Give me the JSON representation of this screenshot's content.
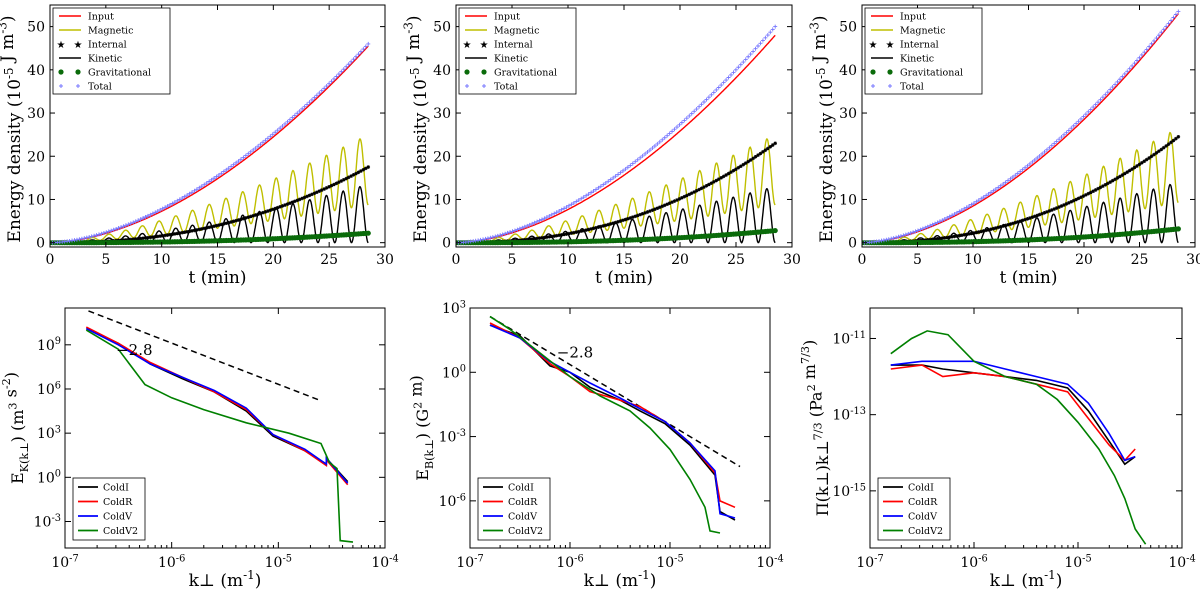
{
  "chart_data": [
    {
      "type": "line",
      "panel": "top-left",
      "xlabel": "t (min)",
      "ylabel": "Energy density (10^-5 J m^-3)",
      "xlim": [
        0,
        30
      ],
      "ylim": [
        -1,
        55
      ],
      "xticks": [
        0,
        5,
        10,
        15,
        20,
        25,
        30
      ],
      "yticks": [
        0,
        10,
        20,
        30,
        40,
        50
      ],
      "legend_position": "top-left",
      "t_end": 28.5,
      "series": [
        {
          "name": "Input",
          "color": "#ff0000",
          "style": "line",
          "model": "quad",
          "end": 45.5,
          "power": 1.75
        },
        {
          "name": "Magnetic",
          "color": "#bfbf00",
          "style": "line",
          "model": "osc_pos",
          "end": 25,
          "period": 1.5
        },
        {
          "name": "Internal",
          "color": "#000000",
          "style": "star",
          "model": "quad",
          "end": 17.5,
          "power": 2.3
        },
        {
          "name": "Kinetic",
          "color": "#000000",
          "style": "line",
          "model": "osc_neg",
          "end": 13.5,
          "period": 1.5
        },
        {
          "name": "Gravitational",
          "color": "#0a6b0a",
          "style": "dot",
          "model": "quad",
          "end": 2.2,
          "power": 2.5
        },
        {
          "name": "Total",
          "color": "#7777ff",
          "style": "plus",
          "model": "quad",
          "end": 46,
          "power": 1.7
        }
      ]
    },
    {
      "type": "line",
      "panel": "top-middle",
      "xlabel": "t (min)",
      "ylabel": "Energy density (10^-5 J m^-3)",
      "xlim": [
        0,
        30
      ],
      "ylim": [
        -1,
        55
      ],
      "xticks": [
        0,
        5,
        10,
        15,
        20,
        25,
        30
      ],
      "yticks": [
        0,
        10,
        20,
        30,
        40,
        50
      ],
      "legend_position": "top-left",
      "t_end": 28.5,
      "series": [
        {
          "name": "Input",
          "color": "#ff0000",
          "style": "line",
          "model": "quad",
          "end": 48,
          "power": 1.75
        },
        {
          "name": "Magnetic",
          "color": "#bfbf00",
          "style": "line",
          "model": "osc_pos",
          "end": 25,
          "period": 1.5
        },
        {
          "name": "Internal",
          "color": "#000000",
          "style": "star",
          "model": "quad",
          "end": 23,
          "power": 2.3
        },
        {
          "name": "Kinetic",
          "color": "#000000",
          "style": "line",
          "model": "osc_neg",
          "end": 13,
          "period": 1.5
        },
        {
          "name": "Gravitational",
          "color": "#0a6b0a",
          "style": "dot",
          "model": "quad",
          "end": 2.8,
          "power": 2.5
        },
        {
          "name": "Total",
          "color": "#7777ff",
          "style": "plus",
          "model": "quad",
          "end": 50,
          "power": 1.7
        }
      ]
    },
    {
      "type": "line",
      "panel": "top-right",
      "xlabel": "t (min)",
      "ylabel": "Energy density (10^-5 J m^-3)",
      "xlim": [
        0,
        30
      ],
      "ylim": [
        -1,
        55
      ],
      "xticks": [
        0,
        5,
        10,
        15,
        20,
        25,
        30
      ],
      "yticks": [
        0,
        10,
        20,
        30,
        40,
        50
      ],
      "legend_position": "top-left",
      "t_end": 28.5,
      "series": [
        {
          "name": "Input",
          "color": "#ff0000",
          "style": "line",
          "model": "quad",
          "end": 53,
          "power": 1.75
        },
        {
          "name": "Magnetic",
          "color": "#bfbf00",
          "style": "line",
          "model": "osc_pos",
          "end": 26.5,
          "period": 1.5
        },
        {
          "name": "Internal",
          "color": "#000000",
          "style": "star",
          "model": "quad",
          "end": 24.5,
          "power": 2.3
        },
        {
          "name": "Kinetic",
          "color": "#000000",
          "style": "line",
          "model": "osc_neg",
          "end": 14,
          "period": 1.5
        },
        {
          "name": "Gravitational",
          "color": "#0a6b0a",
          "style": "dot",
          "model": "quad",
          "end": 3.2,
          "power": 2.5
        },
        {
          "name": "Total",
          "color": "#7777ff",
          "style": "plus",
          "model": "quad",
          "end": 53.5,
          "power": 1.7
        }
      ]
    },
    {
      "type": "line",
      "panel": "bottom-left",
      "scale": "log-log",
      "xlabel": "k⊥ (m^-1)",
      "ylabel": "E_K(k⊥) (m^3 s^-2)",
      "xlim_exp": [
        -7,
        -4
      ],
      "ylim_exp": [
        -4.8,
        11.5
      ],
      "xticks_exp": [
        -7,
        -6,
        -5,
        -4
      ],
      "yticks_exp": [
        -3,
        0,
        3,
        6,
        9
      ],
      "legend_position": "bottom-left",
      "annotation": {
        "text": "−2.8",
        "x_exp": -6.35,
        "y_exp": 8.3
      },
      "reference_line": {
        "slope": -2.8,
        "x_exp": [
          -6.78,
          -4.6
        ],
        "y_exp": [
          11.3,
          5.2
        ]
      },
      "series": [
        {
          "name": "ColdI",
          "color": "#000000",
          "points": [
            [
              -6.8,
              10.1
            ],
            [
              -6.5,
              9.1
            ],
            [
              -6.2,
              7.7
            ],
            [
              -5.9,
              6.7
            ],
            [
              -5.6,
              5.8
            ],
            [
              -5.3,
              4.5
            ],
            [
              -5.05,
              2.8
            ],
            [
              -4.75,
              1.8
            ],
            [
              -4.55,
              0.9
            ],
            [
              -4.55,
              1.3
            ],
            [
              -4.35,
              -0.3
            ]
          ]
        },
        {
          "name": "ColdR",
          "color": "#ff0000",
          "points": [
            [
              -6.8,
              10.2
            ],
            [
              -6.5,
              9.1
            ],
            [
              -6.2,
              7.8
            ],
            [
              -5.9,
              6.8
            ],
            [
              -5.6,
              5.8
            ],
            [
              -5.3,
              4.6
            ],
            [
              -5.05,
              2.9
            ],
            [
              -4.75,
              1.8
            ],
            [
              -4.55,
              0.8
            ],
            [
              -4.55,
              1.2
            ],
            [
              -4.35,
              -0.5
            ]
          ]
        },
        {
          "name": "ColdV",
          "color": "#0000ff",
          "points": [
            [
              -6.8,
              10.1
            ],
            [
              -6.5,
              9.0
            ],
            [
              -6.2,
              7.7
            ],
            [
              -5.9,
              6.8
            ],
            [
              -5.6,
              5.9
            ],
            [
              -5.3,
              4.7
            ],
            [
              -5.05,
              2.9
            ],
            [
              -4.75,
              1.9
            ],
            [
              -4.55,
              0.9
            ],
            [
              -4.55,
              1.3
            ],
            [
              -4.35,
              -0.4
            ]
          ]
        },
        {
          "name": "ColdV2",
          "color": "#008000",
          "points": [
            [
              -6.8,
              10.0
            ],
            [
              -6.5,
              8.7
            ],
            [
              -6.25,
              6.3
            ],
            [
              -6.0,
              5.4
            ],
            [
              -5.7,
              4.6
            ],
            [
              -5.3,
              3.7
            ],
            [
              -4.9,
              3.0
            ],
            [
              -4.6,
              2.3
            ],
            [
              -4.52,
              1.0
            ],
            [
              -4.45,
              0.6
            ],
            [
              -4.42,
              -4.3
            ],
            [
              -4.3,
              -4.4
            ]
          ]
        }
      ]
    },
    {
      "type": "line",
      "panel": "bottom-middle",
      "scale": "log-log",
      "xlabel": "k⊥ (m^-1)",
      "ylabel": "E_B(k⊥) (G^2 m)",
      "xlim_exp": [
        -7,
        -4
      ],
      "ylim_exp": [
        -8.2,
        3
      ],
      "xticks_exp": [
        -7,
        -6,
        -5,
        -4
      ],
      "yticks_exp": [
        -6,
        -3,
        0,
        3
      ],
      "legend_position": "bottom-left",
      "annotation": {
        "text": "−2.8",
        "x_exp": -5.95,
        "y_exp": 0.7
      },
      "reference_line": {
        "slope": -2.8,
        "x_exp": [
          -6.8,
          -4.3
        ],
        "y_exp": [
          2.6,
          -4.4
        ]
      },
      "series": [
        {
          "name": "ColdI",
          "color": "#000000",
          "points": [
            [
              -6.8,
              2.2
            ],
            [
              -6.5,
              1.7
            ],
            [
              -6.2,
              0.3
            ],
            [
              -6.0,
              0.0
            ],
            [
              -5.8,
              -0.7
            ],
            [
              -5.5,
              -1.3
            ],
            [
              -5.3,
              -1.8
            ],
            [
              -5.05,
              -2.4
            ],
            [
              -4.8,
              -3.4
            ],
            [
              -4.55,
              -4.8
            ],
            [
              -4.5,
              -6.5
            ],
            [
              -4.35,
              -6.9
            ]
          ]
        },
        {
          "name": "ColdR",
          "color": "#ff0000",
          "points": [
            [
              -6.8,
              2.3
            ],
            [
              -6.5,
              1.6
            ],
            [
              -6.2,
              0.4
            ],
            [
              -6.0,
              -0.2
            ],
            [
              -5.8,
              -0.9
            ],
            [
              -5.5,
              -1.3
            ],
            [
              -5.3,
              -1.6
            ],
            [
              -5.05,
              -2.3
            ],
            [
              -4.8,
              -3.3
            ],
            [
              -4.55,
              -4.7
            ],
            [
              -4.5,
              -6.0
            ],
            [
              -4.35,
              -6.3
            ]
          ]
        },
        {
          "name": "ColdV",
          "color": "#0000ff",
          "points": [
            [
              -6.8,
              2.2
            ],
            [
              -6.5,
              1.6
            ],
            [
              -6.2,
              0.5
            ],
            [
              -6.0,
              0.0
            ],
            [
              -5.8,
              -0.5
            ],
            [
              -5.5,
              -1.2
            ],
            [
              -5.3,
              -1.7
            ],
            [
              -5.05,
              -2.3
            ],
            [
              -4.8,
              -3.3
            ],
            [
              -4.55,
              -4.6
            ],
            [
              -4.5,
              -6.6
            ],
            [
              -4.35,
              -6.8
            ]
          ]
        },
        {
          "name": "ColdV2",
          "color": "#008000",
          "points": [
            [
              -6.8,
              2.6
            ],
            [
              -6.6,
              2.0
            ],
            [
              -6.3,
              0.9
            ],
            [
              -6.0,
              -0.2
            ],
            [
              -5.7,
              -1.1
            ],
            [
              -5.4,
              -1.8
            ],
            [
              -5.2,
              -2.6
            ],
            [
              -5.0,
              -3.6
            ],
            [
              -4.8,
              -5.0
            ],
            [
              -4.65,
              -6.3
            ],
            [
              -4.6,
              -7.4
            ],
            [
              -4.5,
              -7.5
            ]
          ]
        }
      ]
    },
    {
      "type": "line",
      "panel": "bottom-right",
      "scale": "log-log",
      "xlabel": "k⊥ (m^-1)",
      "ylabel": "Π(k⊥)k⊥^7/3 (Pa^2 m^7/3)",
      "xlim_exp": [
        -7,
        -4
      ],
      "ylim_exp": [
        -16.5,
        -10.2
      ],
      "xticks_exp": [
        -7,
        -6,
        -5,
        -4
      ],
      "yticks_exp": [
        -15,
        -13,
        -11
      ],
      "legend_position": "bottom-left",
      "series": [
        {
          "name": "ColdI",
          "color": "#000000",
          "points": [
            [
              -6.8,
              -11.7
            ],
            [
              -6.5,
              -11.7
            ],
            [
              -6.3,
              -11.8
            ],
            [
              -6.0,
              -11.9
            ],
            [
              -5.7,
              -12.0
            ],
            [
              -5.4,
              -12.1
            ],
            [
              -5.1,
              -12.3
            ],
            [
              -4.9,
              -12.9
            ],
            [
              -4.7,
              -13.7
            ],
            [
              -4.55,
              -14.3
            ],
            [
              -4.45,
              -14.1
            ]
          ]
        },
        {
          "name": "ColdR",
          "color": "#ff0000",
          "points": [
            [
              -6.8,
              -11.8
            ],
            [
              -6.5,
              -11.7
            ],
            [
              -6.3,
              -12.0
            ],
            [
              -6.0,
              -11.9
            ],
            [
              -5.7,
              -12.0
            ],
            [
              -5.4,
              -12.2
            ],
            [
              -5.1,
              -12.4
            ],
            [
              -4.9,
              -13.1
            ],
            [
              -4.7,
              -13.8
            ],
            [
              -4.55,
              -14.2
            ],
            [
              -4.45,
              -13.9
            ]
          ]
        },
        {
          "name": "ColdV",
          "color": "#0000ff",
          "points": [
            [
              -6.8,
              -11.7
            ],
            [
              -6.5,
              -11.6
            ],
            [
              -6.3,
              -11.6
            ],
            [
              -6.0,
              -11.6
            ],
            [
              -5.7,
              -11.8
            ],
            [
              -5.4,
              -12.0
            ],
            [
              -5.1,
              -12.2
            ],
            [
              -4.9,
              -12.7
            ],
            [
              -4.7,
              -13.5
            ],
            [
              -4.55,
              -14.2
            ],
            [
              -4.45,
              -14.1
            ]
          ]
        },
        {
          "name": "ColdV2",
          "color": "#008000",
          "points": [
            [
              -6.8,
              -11.4
            ],
            [
              -6.6,
              -11.0
            ],
            [
              -6.45,
              -10.8
            ],
            [
              -6.25,
              -10.9
            ],
            [
              -6.0,
              -11.6
            ],
            [
              -5.7,
              -12.0
            ],
            [
              -5.4,
              -12.2
            ],
            [
              -5.2,
              -12.6
            ],
            [
              -5.0,
              -13.2
            ],
            [
              -4.8,
              -13.9
            ],
            [
              -4.65,
              -14.6
            ],
            [
              -4.55,
              -15.2
            ],
            [
              -4.45,
              -16.0
            ],
            [
              -4.35,
              -16.4
            ]
          ]
        }
      ]
    }
  ]
}
